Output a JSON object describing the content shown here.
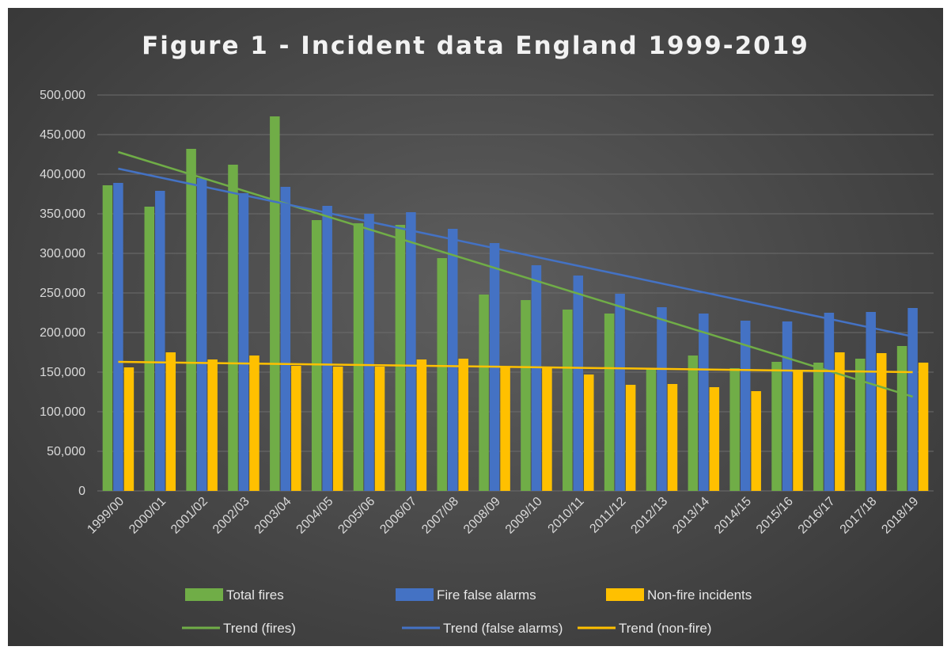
{
  "chart_data": {
    "type": "bar",
    "title": "Figure 1 - Incident data England 1999-2019",
    "categories": [
      "1999/00",
      "2000/01",
      "2001/02",
      "2002/03",
      "2003/04",
      "2004/05",
      "2005/06",
      "2006/07",
      "2007/08",
      "2008/09",
      "2009/10",
      "2010/11",
      "2011/12",
      "2012/13",
      "2013/14",
      "2014/15",
      "2015/16",
      "2016/17",
      "2017/18",
      "2018/19"
    ],
    "series": [
      {
        "name": "Total fires",
        "color": "#70ad47",
        "values": [
          386000,
          359000,
          432000,
          412000,
          473000,
          342000,
          338000,
          336000,
          294000,
          248000,
          241000,
          229000,
          224000,
          155000,
          171000,
          155000,
          163000,
          162000,
          167000,
          183000
        ]
      },
      {
        "name": "Fire false alarms",
        "color": "#4472c4",
        "values": [
          389000,
          379000,
          395000,
          376000,
          384000,
          360000,
          350000,
          352000,
          331000,
          313000,
          285000,
          272000,
          249000,
          232000,
          224000,
          215000,
          214000,
          225000,
          226000,
          231000
        ]
      },
      {
        "name": "Non-fire incidents",
        "color": "#ffc000",
        "values": [
          156000,
          175000,
          166000,
          171000,
          158000,
          157000,
          157000,
          166000,
          167000,
          157000,
          155000,
          147000,
          134000,
          135000,
          131000,
          126000,
          152000,
          175000,
          174000,
          162000
        ]
      }
    ],
    "trends": [
      {
        "name": "Trend (fires)",
        "color": "#70ad47",
        "start": 428000,
        "end": 119000
      },
      {
        "name": "Trend (false alarms)",
        "color": "#4472c4",
        "start": 407000,
        "end": 195000
      },
      {
        "name": "Trend (non-fire)",
        "color": "#ffc000",
        "start": 163000,
        "end": 150000
      }
    ],
    "y_ticks": [
      "500,000",
      "450,000",
      "400,000",
      "350,000",
      "300,000",
      "250,000",
      "200,000",
      "150,000",
      "100,000",
      "50,000",
      "0"
    ],
    "ylim": [
      0,
      500000
    ],
    "grid": true,
    "legend_position": "bottom"
  }
}
